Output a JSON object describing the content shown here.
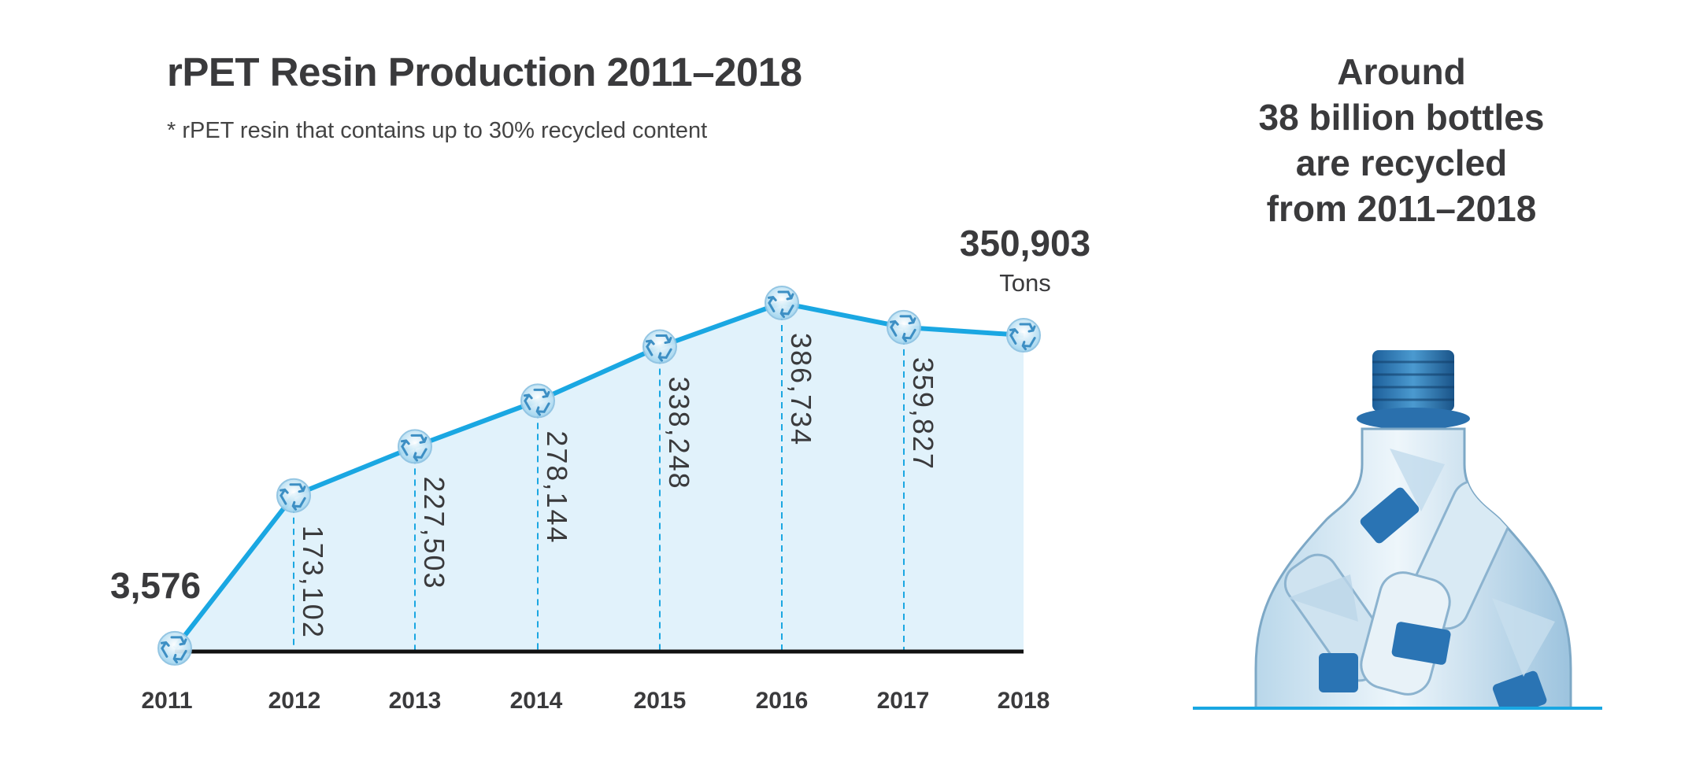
{
  "title": "rPET Resin Production 2011–2018",
  "subtitle": "* rPET resin that contains up to 30% recycled content",
  "side_text": [
    "Around",
    "38 billion bottles",
    "are recycled",
    "from 2011–2018"
  ],
  "colors": {
    "line": "#1aa7e2",
    "fill": "#e1f2fb",
    "baseline": "#111111",
    "text": "#3a3a3c"
  },
  "chart_data": {
    "type": "area",
    "categories": [
      "2011",
      "2012",
      "2013",
      "2014",
      "2015",
      "2016",
      "2017",
      "2018"
    ],
    "values": [
      3576,
      173102,
      227503,
      278144,
      338248,
      386734,
      359827,
      350903
    ],
    "value_labels": [
      "3,576",
      "173,102",
      "227,503",
      "278,144",
      "338,248",
      "386,734",
      "359,827",
      "350,903"
    ],
    "unit_label": "Tons",
    "marker_icon": "recycle-icon",
    "ylim": [
      0,
      400000
    ],
    "xlabel": "",
    "ylabel": "",
    "grid": false
  }
}
